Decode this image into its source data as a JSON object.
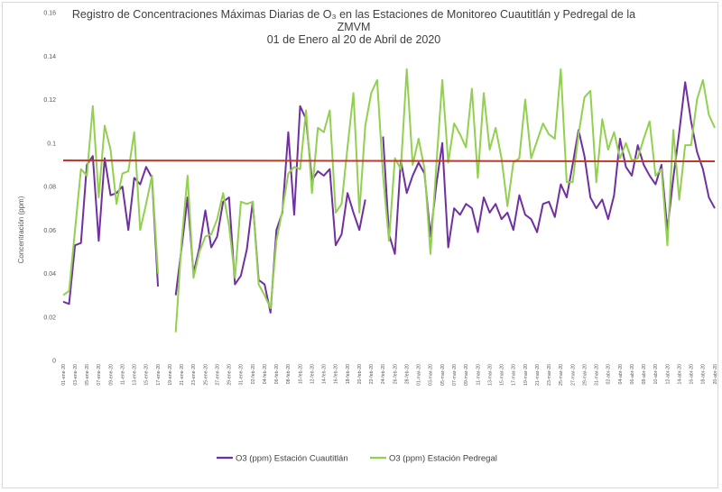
{
  "chart_data": {
    "type": "line",
    "title_line1": "Registro de Concentraciones Máximas Diarias de O₃ en las Estaciones de Monitoreo Cuautitlán  y Pedregal de la",
    "title_line2": "ZMVM",
    "title_line3": "01 de Enero al 20 de Abril de 2020",
    "ylabel": "Concentración (ppm)",
    "xlabel": "",
    "ylim": [
      0,
      0.16
    ],
    "yticks": [
      "0",
      "0.02",
      "0.04",
      "0.06",
      "0.08",
      "0.1",
      "0.12",
      "0.14",
      "0.16"
    ],
    "x_tick_labels": [
      "01-ene-20",
      "03-ene-20",
      "05-ene-20",
      "07-ene-20",
      "09-ene-20",
      "11-ene-20",
      "13-ene-20",
      "15-ene-20",
      "17-ene-20",
      "19-ene-20",
      "21-ene-20",
      "23-ene-20",
      "25-ene-20",
      "27-ene-20",
      "29-ene-20",
      "31-ene-20",
      "02-feb-20",
      "04-feb-20",
      "06-feb-20",
      "08-feb-20",
      "10-feb-20",
      "12-feb-20",
      "14-feb-20",
      "16-feb-20",
      "18-feb-20",
      "20-feb-20",
      "22-feb-20",
      "24-feb-20",
      "26-feb-20",
      "28-feb-20",
      "01-mar-20",
      "03-mar-20",
      "05-mar-20",
      "07-mar-20",
      "09-mar-20",
      "11-mar-20",
      "13-mar-20",
      "15-mar-20",
      "17-mar-20",
      "19-mar-20",
      "21-mar-20",
      "23-mar-20",
      "25-mar-20",
      "27-mar-20",
      "29-mar-20",
      "31-mar-20",
      "02-abr-20",
      "04-abr-20",
      "06-abr-20",
      "08-abr-20",
      "10-abr-20",
      "12-abr-20",
      "14-abr-20",
      "16-abr-20",
      "18-abr-20",
      "20-abr-20"
    ],
    "reference_line": {
      "value": 0.092,
      "color": "#c0392b"
    },
    "grid": false,
    "legend_position": "bottom",
    "series": [
      {
        "name": "O3 (ppm) Estación Cuautitlán",
        "color": "#7030a0",
        "values": [
          0.027,
          0.026,
          0.053,
          0.054,
          0.09,
          0.094,
          0.055,
          0.093,
          0.076,
          0.077,
          0.08,
          0.06,
          0.084,
          0.081,
          0.089,
          0.084,
          0.034,
          null,
          null,
          0.03,
          0.052,
          0.075,
          0.04,
          0.052,
          0.069,
          0.052,
          0.057,
          0.073,
          0.075,
          0.035,
          0.039,
          0.051,
          0.073,
          0.037,
          0.035,
          0.022,
          0.06,
          0.068,
          0.105,
          0.067,
          0.117,
          0.111,
          0.083,
          0.087,
          0.085,
          0.088,
          0.053,
          0.058,
          0.077,
          0.068,
          0.06,
          0.074,
          null,
          null,
          0.103,
          0.058,
          0.049,
          0.092,
          0.077,
          0.085,
          0.091,
          0.086,
          0.057,
          0.081,
          0.1,
          0.052,
          0.07,
          0.067,
          0.072,
          0.07,
          0.059,
          0.075,
          0.068,
          0.072,
          0.065,
          0.068,
          0.06,
          0.076,
          0.067,
          0.065,
          0.059,
          0.072,
          0.073,
          0.066,
          0.081,
          0.075,
          0.09,
          0.106,
          0.094,
          0.075,
          0.07,
          0.074,
          0.065,
          0.076,
          0.102,
          0.089,
          0.085,
          0.099,
          0.09,
          0.085,
          0.081,
          0.09,
          0.06,
          0.084,
          0.105,
          0.128,
          0.11,
          0.096,
          0.088,
          0.075,
          0.07
        ]
      },
      {
        "name": "O3 (ppm) Estación Pedregal",
        "color": "#92d050",
        "values": [
          0.03,
          0.032,
          0.06,
          0.088,
          0.085,
          0.117,
          0.075,
          0.108,
          0.097,
          0.072,
          0.086,
          0.087,
          0.105,
          0.06,
          0.072,
          0.085,
          0.04,
          null,
          null,
          0.013,
          0.055,
          0.085,
          0.038,
          0.05,
          0.057,
          0.058,
          0.065,
          0.077,
          0.062,
          0.038,
          0.073,
          0.072,
          0.073,
          0.035,
          0.03,
          0.024,
          0.055,
          0.069,
          0.086,
          0.089,
          0.088,
          0.115,
          0.077,
          0.107,
          0.105,
          0.115,
          0.068,
          0.072,
          0.098,
          0.123,
          0.068,
          0.108,
          0.123,
          0.129,
          0.085,
          0.055,
          0.093,
          0.088,
          0.134,
          0.09,
          0.102,
          0.088,
          0.049,
          0.09,
          0.129,
          0.091,
          0.109,
          0.104,
          0.098,
          0.125,
          0.084,
          0.123,
          0.097,
          0.107,
          0.093,
          0.071,
          0.091,
          0.093,
          0.12,
          0.093,
          0.101,
          0.109,
          0.104,
          0.102,
          0.134,
          0.082,
          0.082,
          0.104,
          0.121,
          0.124,
          0.082,
          0.111,
          0.097,
          0.105,
          0.093,
          0.1,
          0.092,
          0.093,
          0.102,
          0.11,
          0.085,
          0.088,
          0.053,
          0.106,
          0.074,
          0.099,
          0.099,
          0.12,
          0.129,
          0.113,
          0.107
        ]
      }
    ]
  }
}
